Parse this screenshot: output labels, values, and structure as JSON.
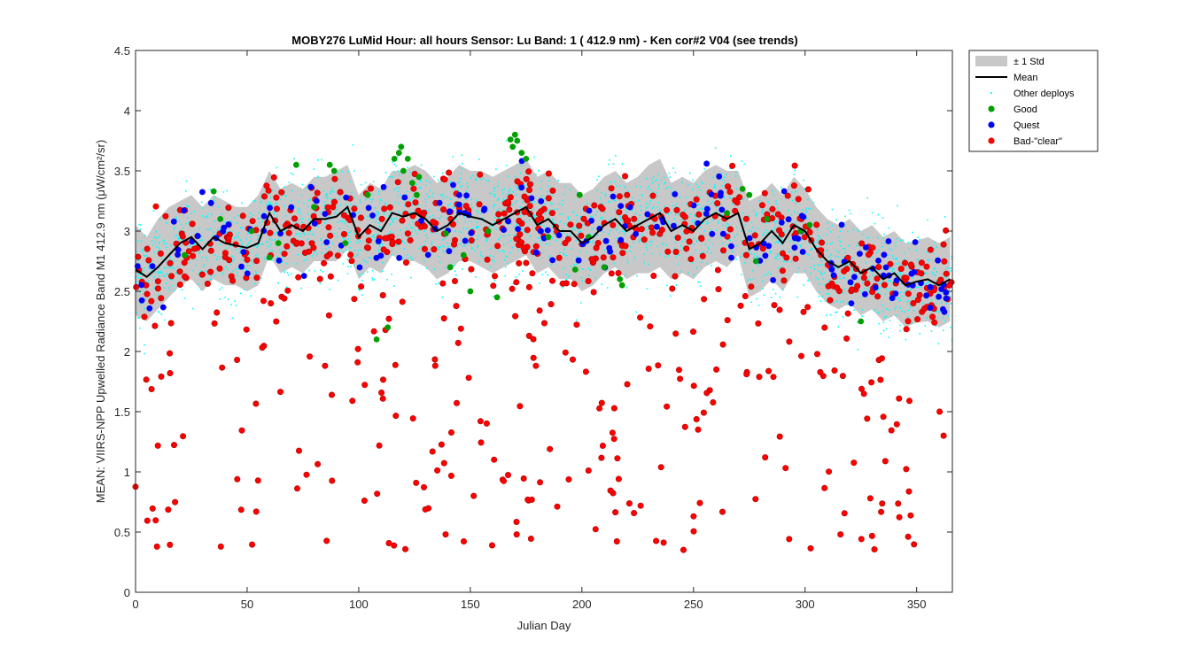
{
  "chart_data": {
    "type": "scatter",
    "title": "MOBY276   LuMid  Hour: all hours  Sensor: Lu Band: 1 ( 412.9 nm)  - Ken cor#2 V04 (see trends)",
    "xlabel": "Julian Day",
    "ylabel": "MEAN: VIIRS-NPP Upwelled Radiance Band M1 412.9 nm (μW/cm²/sr)",
    "xlim": [
      0,
      366
    ],
    "ylim": [
      0,
      4.5
    ],
    "xticks": [
      0,
      50,
      100,
      150,
      200,
      250,
      300,
      350
    ],
    "yticks": [
      0,
      0.5,
      1,
      1.5,
      2,
      2.5,
      3,
      3.5,
      4,
      4.5
    ],
    "ytick_labels": [
      "0",
      "0.5",
      "1",
      "1.5",
      "2",
      "2.5",
      "3",
      "3.5",
      "4",
      "4.5"
    ],
    "grid": false,
    "legend_position": "outside-top-right",
    "legend": [
      {
        "key": "std",
        "label": "± 1 Std",
        "color": "#c8c8c8"
      },
      {
        "key": "mean",
        "label": "Mean",
        "color": "#000000"
      },
      {
        "key": "other",
        "label": "Other deploys",
        "color": "#00ffff"
      },
      {
        "key": "good",
        "label": "Good",
        "color": "#00a000"
      },
      {
        "key": "quest",
        "label": "Quest",
        "color": "#0000ff"
      },
      {
        "key": "bad",
        "label": "Bad-\"clear\"",
        "color": "#ff0000"
      }
    ],
    "series": [
      {
        "name": "Mean",
        "x": [
          0,
          5,
          10,
          15,
          20,
          25,
          30,
          35,
          40,
          45,
          50,
          55,
          60,
          65,
          70,
          75,
          80,
          85,
          90,
          95,
          100,
          105,
          110,
          115,
          120,
          125,
          130,
          135,
          140,
          145,
          150,
          155,
          160,
          165,
          170,
          175,
          180,
          185,
          190,
          195,
          200,
          205,
          210,
          215,
          220,
          225,
          230,
          235,
          240,
          245,
          250,
          255,
          260,
          265,
          270,
          275,
          280,
          285,
          290,
          295,
          300,
          305,
          310,
          315,
          320,
          325,
          330,
          335,
          340,
          345,
          350,
          355,
          360,
          365
        ],
        "y": [
          2.68,
          2.62,
          2.7,
          2.8,
          2.9,
          2.95,
          2.85,
          2.95,
          2.9,
          2.88,
          2.86,
          2.9,
          3.15,
          3.0,
          3.05,
          3.0,
          3.1,
          3.1,
          3.12,
          3.2,
          2.95,
          3.05,
          3.0,
          3.15,
          3.12,
          3.15,
          3.1,
          3.0,
          3.05,
          3.15,
          3.12,
          3.1,
          3.05,
          3.1,
          3.15,
          3.2,
          3.05,
          3.1,
          3.0,
          3.0,
          2.9,
          2.95,
          3.05,
          3.1,
          3.0,
          3.05,
          3.1,
          3.15,
          3.0,
          3.05,
          3.0,
          3.1,
          3.15,
          3.1,
          3.15,
          2.85,
          2.9,
          3.0,
          2.9,
          3.05,
          3.0,
          2.85,
          2.75,
          2.7,
          2.75,
          2.65,
          2.7,
          2.6,
          2.65,
          2.55,
          2.58,
          2.6,
          2.55,
          2.6
        ]
      },
      {
        "name": "± 1 Std",
        "x": [
          0,
          5,
          10,
          15,
          20,
          25,
          30,
          35,
          40,
          45,
          50,
          55,
          60,
          65,
          70,
          75,
          80,
          85,
          90,
          95,
          100,
          105,
          110,
          115,
          120,
          125,
          130,
          135,
          140,
          145,
          150,
          155,
          160,
          165,
          170,
          175,
          180,
          185,
          190,
          195,
          200,
          205,
          210,
          215,
          220,
          225,
          230,
          235,
          240,
          245,
          250,
          255,
          260,
          265,
          270,
          275,
          280,
          285,
          290,
          295,
          300,
          305,
          310,
          315,
          320,
          325,
          330,
          335,
          340,
          345,
          350,
          355,
          360,
          365
        ],
        "upper": [
          3.05,
          2.95,
          3.1,
          3.2,
          3.25,
          3.3,
          3.2,
          3.3,
          3.25,
          3.2,
          3.2,
          3.3,
          3.5,
          3.35,
          3.4,
          3.35,
          3.45,
          3.45,
          3.5,
          3.55,
          3.3,
          3.4,
          3.35,
          3.5,
          3.5,
          3.55,
          3.5,
          3.4,
          3.45,
          3.55,
          3.5,
          3.5,
          3.45,
          3.5,
          3.55,
          3.6,
          3.45,
          3.5,
          3.4,
          3.4,
          3.3,
          3.35,
          3.45,
          3.5,
          3.4,
          3.45,
          3.55,
          3.6,
          3.4,
          3.45,
          3.4,
          3.5,
          3.55,
          3.5,
          3.5,
          3.25,
          3.3,
          3.4,
          3.3,
          3.45,
          3.35,
          3.2,
          3.1,
          3.05,
          3.1,
          3.0,
          3.05,
          2.95,
          3.0,
          2.9,
          2.92,
          2.95,
          2.9,
          2.95
        ],
        "lower": [
          2.3,
          2.25,
          2.35,
          2.45,
          2.55,
          2.6,
          2.5,
          2.6,
          2.55,
          2.55,
          2.5,
          2.55,
          2.8,
          2.65,
          2.7,
          2.65,
          2.75,
          2.75,
          2.75,
          2.85,
          2.6,
          2.7,
          2.65,
          2.8,
          2.75,
          2.75,
          2.7,
          2.6,
          2.65,
          2.75,
          2.75,
          2.7,
          2.65,
          2.7,
          2.75,
          2.8,
          2.65,
          2.7,
          2.6,
          2.6,
          2.5,
          2.55,
          2.65,
          2.7,
          2.6,
          2.65,
          2.65,
          2.7,
          2.6,
          2.65,
          2.6,
          2.7,
          2.75,
          2.7,
          2.8,
          2.45,
          2.5,
          2.6,
          2.5,
          2.65,
          2.65,
          2.5,
          2.4,
          2.35,
          2.4,
          2.3,
          2.35,
          2.25,
          2.3,
          2.2,
          2.24,
          2.25,
          2.2,
          2.25
        ]
      },
      {
        "name": "Good",
        "x": [
          22,
          35,
          38,
          52,
          60,
          64,
          72,
          80,
          87,
          89,
          94,
          104,
          108,
          113,
          116,
          118,
          119,
          120,
          122,
          124,
          126,
          127,
          139,
          141,
          147,
          150,
          158,
          162,
          168,
          169,
          170,
          171,
          173,
          175,
          185,
          197,
          199,
          203,
          210,
          217,
          218,
          265,
          272,
          275,
          278,
          283,
          298,
          302,
          325
        ],
        "y": [
          2.8,
          3.33,
          3.1,
          3.0,
          2.78,
          2.9,
          3.55,
          3.2,
          3.55,
          3.5,
          2.9,
          3.3,
          2.1,
          2.2,
          3.6,
          3.65,
          3.7,
          3.5,
          3.6,
          3.4,
          3.3,
          3.45,
          2.98,
          2.7,
          2.8,
          2.5,
          3.0,
          2.45,
          3.76,
          3.7,
          3.8,
          3.75,
          3.65,
          3.6,
          2.95,
          2.68,
          3.3,
          2.95,
          2.7,
          2.6,
          2.55,
          3.15,
          3.35,
          3.3,
          2.75,
          3.1,
          3.0,
          3.05,
          2.25
        ]
      }
    ],
    "annotations": []
  }
}
